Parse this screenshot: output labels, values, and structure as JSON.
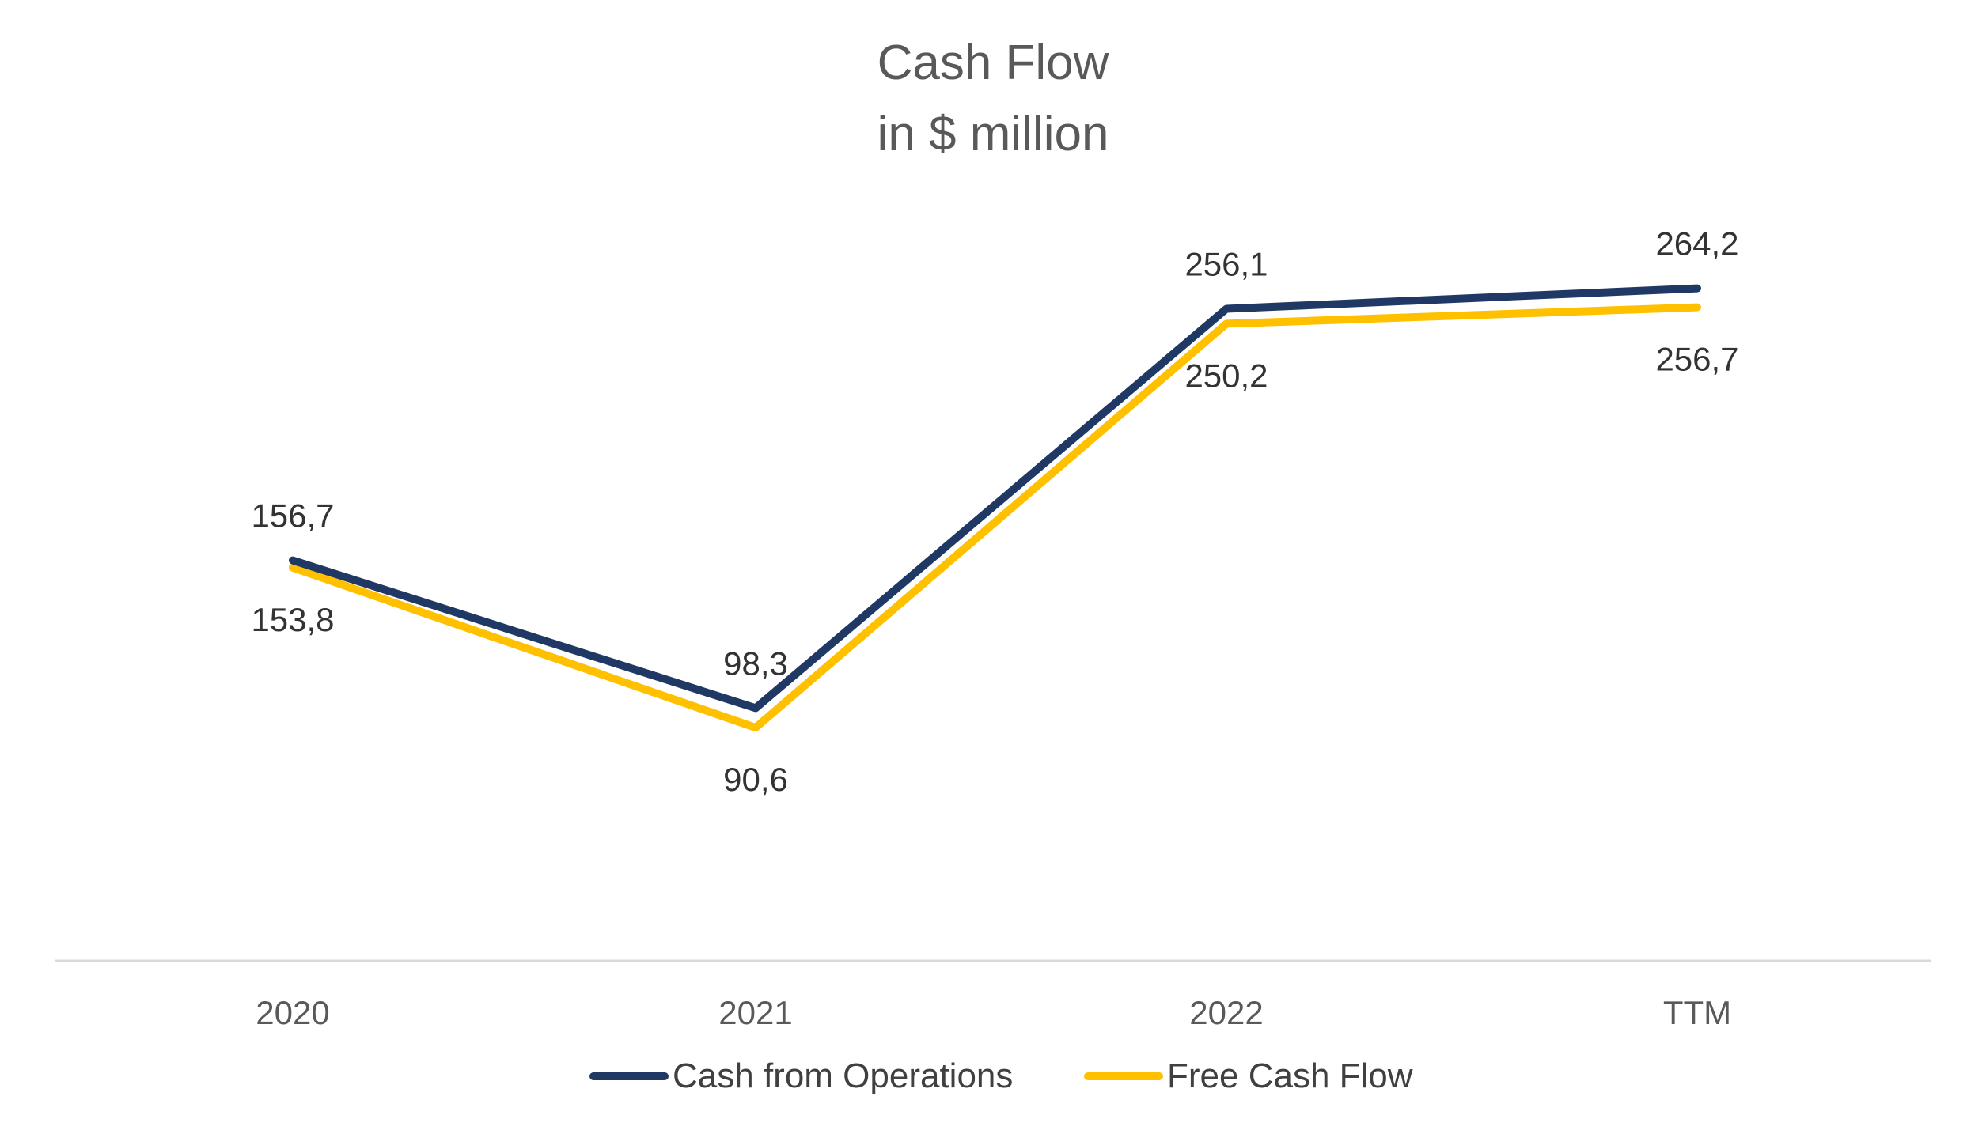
{
  "chart_data": {
    "type": "line",
    "title": "Cash Flow",
    "subtitle": "in $ million",
    "categories": [
      "2020",
      "2021",
      "2022",
      "TTM"
    ],
    "series": [
      {
        "name": "Cash from Operations",
        "values": [
          156.7,
          98.3,
          256.1,
          264.2
        ],
        "labels": [
          "156,7",
          "98,3",
          "256,1",
          "264,2"
        ],
        "color": "#1F3864",
        "label_position": "above"
      },
      {
        "name": "Free Cash Flow",
        "values": [
          153.8,
          90.6,
          250.2,
          256.7
        ],
        "labels": [
          "153,8",
          "90,6",
          "250,2",
          "256,7"
        ],
        "color": "#FFC000",
        "label_position": "below"
      }
    ],
    "ylim": [
      0,
      350
    ],
    "xlabel": "",
    "ylabel": "",
    "grid": false,
    "legend": "bottom",
    "axis_color": "#D9D9D9"
  }
}
